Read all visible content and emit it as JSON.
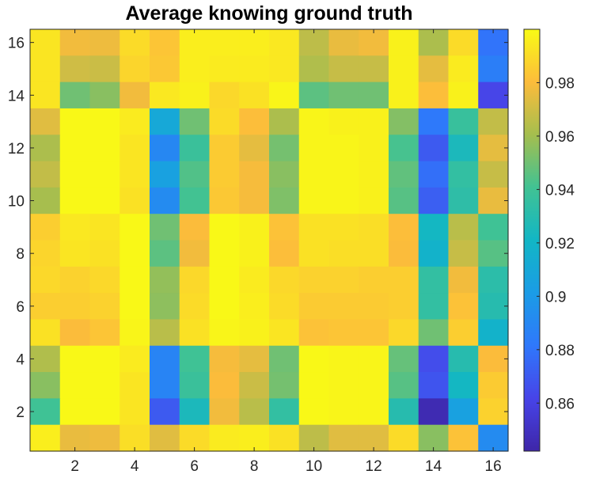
{
  "chart_data": {
    "type": "heatmap",
    "title": "Average knowing ground truth",
    "xlabel": "",
    "ylabel": "",
    "x_ticks": [
      "2",
      "4",
      "6",
      "8",
      "10",
      "12",
      "14",
      "16"
    ],
    "y_ticks": [
      "2",
      "4",
      "6",
      "8",
      "10",
      "12",
      "14",
      "16"
    ],
    "xlim": [
      0.5,
      16.5
    ],
    "ylim": [
      0.5,
      16.5
    ],
    "colorbar": {
      "ticks": [
        "0.86",
        "0.88",
        "0.9",
        "0.92",
        "0.94",
        "0.96",
        "0.98"
      ],
      "tick_values": [
        0.86,
        0.88,
        0.9,
        0.92,
        0.94,
        0.96,
        0.98
      ],
      "range": [
        0.842,
        1.0
      ],
      "colormap": "parula"
    },
    "rows_top_to_bottom": [
      [
        0.993,
        0.978,
        0.977,
        0.99,
        0.983,
        0.996,
        0.996,
        0.996,
        0.994,
        0.966,
        0.976,
        0.978,
        0.997,
        0.962,
        0.99,
        0.88
      ],
      [
        0.993,
        0.97,
        0.969,
        0.988,
        0.984,
        0.996,
        0.995,
        0.995,
        0.994,
        0.963,
        0.968,
        0.968,
        0.997,
        0.975,
        0.995,
        0.885
      ],
      [
        0.993,
        0.95,
        0.955,
        0.978,
        0.994,
        0.997,
        0.989,
        0.992,
        0.998,
        0.946,
        0.95,
        0.95,
        0.997,
        0.981,
        0.997,
        0.862
      ],
      [
        0.974,
        0.999,
        0.999,
        0.995,
        0.91,
        0.95,
        0.99,
        0.981,
        0.962,
        0.998,
        0.997,
        0.997,
        0.954,
        0.882,
        0.937,
        0.967
      ],
      [
        0.962,
        0.999,
        0.999,
        0.993,
        0.89,
        0.938,
        0.985,
        0.975,
        0.951,
        0.998,
        0.998,
        0.997,
        0.942,
        0.87,
        0.925,
        0.975
      ],
      [
        0.967,
        0.999,
        0.999,
        0.993,
        0.905,
        0.944,
        0.985,
        0.979,
        0.955,
        0.998,
        0.998,
        0.997,
        0.947,
        0.878,
        0.935,
        0.968
      ],
      [
        0.961,
        0.999,
        0.999,
        0.992,
        0.892,
        0.941,
        0.984,
        0.979,
        0.953,
        0.998,
        0.998,
        0.997,
        0.945,
        0.872,
        0.933,
        0.976
      ],
      [
        0.986,
        0.994,
        0.993,
        0.999,
        0.95,
        0.98,
        0.999,
        0.997,
        0.982,
        0.992,
        0.992,
        0.991,
        0.981,
        0.922,
        0.965,
        0.94
      ],
      [
        0.988,
        0.993,
        0.992,
        0.999,
        0.946,
        0.978,
        0.999,
        0.997,
        0.981,
        0.992,
        0.991,
        0.991,
        0.98,
        0.918,
        0.968,
        0.945
      ],
      [
        0.989,
        0.987,
        0.989,
        0.999,
        0.957,
        0.989,
        0.999,
        0.995,
        0.989,
        0.987,
        0.987,
        0.986,
        0.986,
        0.935,
        0.978,
        0.932
      ],
      [
        0.986,
        0.986,
        0.987,
        0.999,
        0.956,
        0.99,
        0.999,
        0.996,
        0.99,
        0.985,
        0.985,
        0.985,
        0.986,
        0.935,
        0.982,
        0.93
      ],
      [
        0.992,
        0.98,
        0.983,
        0.998,
        0.965,
        0.992,
        0.998,
        0.997,
        0.993,
        0.982,
        0.983,
        0.983,
        0.989,
        0.95,
        0.986,
        0.918
      ],
      [
        0.963,
        0.999,
        0.999,
        0.995,
        0.888,
        0.94,
        0.979,
        0.975,
        0.95,
        0.999,
        0.998,
        0.998,
        0.948,
        0.865,
        0.93,
        0.98
      ],
      [
        0.955,
        0.999,
        0.999,
        0.993,
        0.888,
        0.938,
        0.98,
        0.969,
        0.951,
        0.999,
        0.998,
        0.998,
        0.945,
        0.868,
        0.922,
        0.985
      ],
      [
        0.94,
        0.999,
        0.999,
        0.993,
        0.87,
        0.925,
        0.978,
        0.965,
        0.935,
        0.999,
        0.998,
        0.998,
        0.93,
        0.845,
        0.905,
        0.987
      ],
      [
        0.996,
        0.976,
        0.977,
        0.991,
        0.974,
        0.99,
        0.995,
        0.996,
        0.992,
        0.966,
        0.974,
        0.974,
        0.99,
        0.955,
        0.982,
        0.892
      ]
    ]
  }
}
